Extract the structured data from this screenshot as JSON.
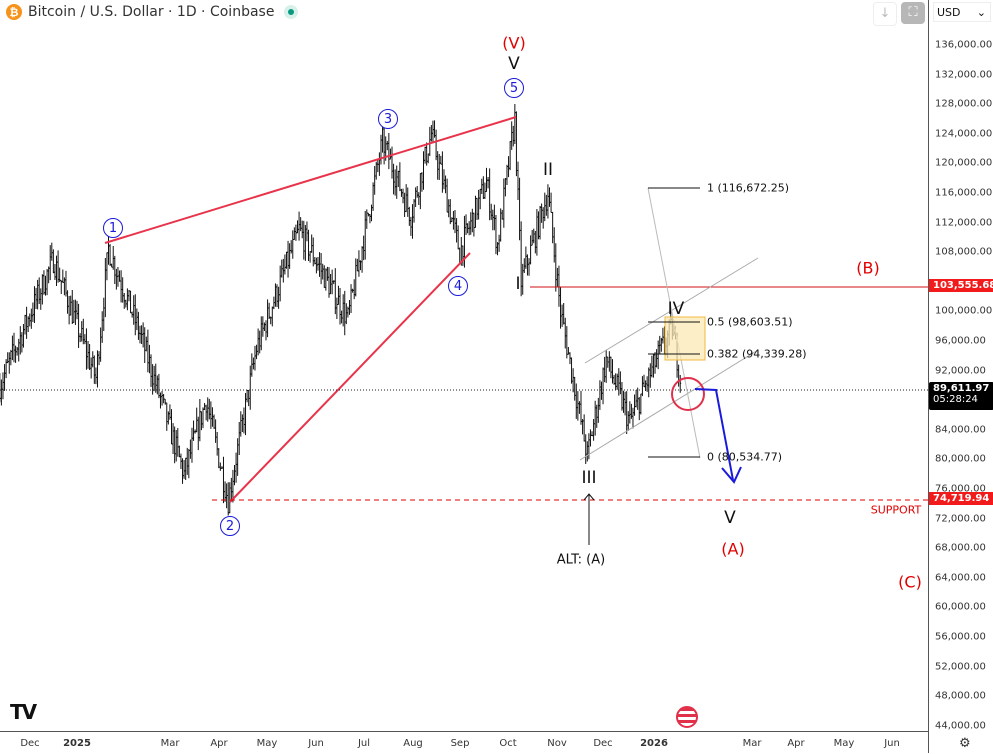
{
  "header": {
    "symbol_title": "Bitcoin / U.S. Dollar · 1D · Coinbase",
    "currency": "USD",
    "coin_icon": "bitcoin-icon",
    "market_status": "open"
  },
  "toolbar": {
    "icons": [
      "arrow-down-icon",
      "fullscreen-icon"
    ]
  },
  "price_axis": {
    "ticks": [
      "136,000.00",
      "132,000.00",
      "128,000.00",
      "124,000.00",
      "120,000.00",
      "116,000.00",
      "112,000.00",
      "108,000.00",
      "100,000.00",
      "96,000.00",
      "92,000.00",
      "84,000.00",
      "80,000.00",
      "76,000.00",
      "72,000.00",
      "68,000.00",
      "64,000.00",
      "60,000.00",
      "56,000.00",
      "52,000.00",
      "48,000.00",
      "44,000.00"
    ],
    "level_b_badge": "103,555.68",
    "current_price": "89,611.97",
    "countdown": "05:28:24",
    "support_badge": "74,719.94"
  },
  "time_axis": {
    "ticks": [
      "Dec",
      "2025",
      "Mar",
      "Apr",
      "May",
      "Jun",
      "Jul",
      "Aug",
      "Sep",
      "Oct",
      "Nov",
      "Dec",
      "2026",
      "Mar",
      "Apr",
      "May",
      "Jun"
    ]
  },
  "annotations": {
    "wave1": "1",
    "wave2": "2",
    "wave3": "3",
    "wave4": "4",
    "wave5": "5",
    "big_v_paren": "(V)",
    "big_v": "V",
    "w_I": "I",
    "w_II": "II",
    "w_III": "III",
    "w_IV": "IV",
    "w_V": "V",
    "A": "(A)",
    "B": "(B)",
    "C": "(C)",
    "alt_a": "ALT: (A)",
    "support": "SUPPORT",
    "fib_1": "1 (116,672.25)",
    "fib_05": "0.5 (98,603.51)",
    "fib_0382": "0.382 (94,339.28)",
    "fib_0": "0 (80,534.77)"
  },
  "colors": {
    "bearish_projection": "#1a1adb",
    "levels": "#e00000",
    "wave_labels": "#1a1adb",
    "fib_zone": "#fbe9b5"
  },
  "chart_data": {
    "type": "ohlc",
    "symbol": "BTC/USD",
    "interval": "1D",
    "ylim": [
      44000,
      136000
    ],
    "levels": {
      "B": 103555.68,
      "support": 74719.94,
      "current": 89611.97
    },
    "fib": {
      "1": 116672.25,
      "0.5": 98603.51,
      "0.382": 94339.28,
      "0": 80534.77
    },
    "approx_pivots": [
      [
        "2024-11-13",
        90000
      ],
      [
        "2024-12-17",
        107000
      ],
      [
        "2025-01-13",
        91000
      ],
      [
        "2025-01-21",
        108500
      ],
      [
        "2025-02-10",
        97000
      ],
      [
        "2025-03-10",
        78000
      ],
      [
        "2025-03-24",
        88000
      ],
      [
        "2025-04-07",
        74500
      ],
      [
        "2025-04-25",
        95000
      ],
      [
        "2025-05-22",
        111000
      ],
      [
        "2025-06-22",
        99000
      ],
      [
        "2025-07-14",
        123000
      ],
      [
        "2025-08-01",
        113000
      ],
      [
        "2025-08-14",
        124000
      ],
      [
        "2025-09-01",
        108000
      ],
      [
        "2025-09-18",
        117500
      ],
      [
        "2025-09-25",
        109000
      ],
      [
        "2025-10-06",
        126000
      ],
      [
        "2025-10-10",
        104000
      ],
      [
        "2025-10-27",
        116000
      ],
      [
        "2025-11-04",
        100000
      ],
      [
        "2025-11-21",
        80500
      ],
      [
        "2025-12-03",
        93500
      ],
      [
        "2025-12-18",
        85000
      ],
      [
        "2026-01-05",
        94000
      ],
      [
        "2026-01-14",
        97800
      ],
      [
        "2026-01-20",
        89612
      ]
    ]
  }
}
